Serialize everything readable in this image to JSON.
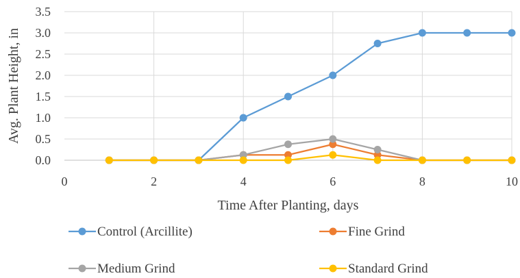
{
  "chart_data": {
    "type": "line",
    "title": "",
    "xlabel": "Time After Planting, days",
    "ylabel": "Avg. Plant Height, in",
    "xlim": [
      0,
      10
    ],
    "ylim": [
      0,
      3.5
    ],
    "xticks": [
      "0",
      "2",
      "4",
      "6",
      "8",
      "10"
    ],
    "yticks": [
      "0.0",
      "0.5",
      "1.0",
      "1.5",
      "2.0",
      "2.5",
      "3.0",
      "3.5"
    ],
    "grid": true,
    "legend_position": "bottom",
    "x": [
      1,
      2,
      3,
      4,
      5,
      6,
      7,
      8,
      9,
      10
    ],
    "series": [
      {
        "name": "Control (Arcillite)",
        "color": "#5b9bd5",
        "values": [
          0,
          0,
          0,
          1.0,
          1.5,
          2.0,
          2.75,
          3.0,
          3.0,
          3.0
        ]
      },
      {
        "name": "Fine Grind",
        "color": "#ed7d31",
        "values": [
          0,
          0,
          0,
          0.125,
          0.125,
          0.375,
          0.125,
          0,
          0,
          0
        ]
      },
      {
        "name": "Medium Grind",
        "color": "#a5a5a5",
        "values": [
          0,
          0,
          0,
          0.125,
          0.375,
          0.5,
          0.25,
          0,
          0,
          0
        ]
      },
      {
        "name": "Standard Grind",
        "color": "#ffc000",
        "values": [
          0,
          0,
          0,
          0,
          0,
          0.125,
          0,
          0,
          0,
          0
        ]
      }
    ]
  }
}
